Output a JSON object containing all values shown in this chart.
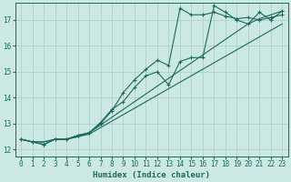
{
  "xlabel": "Humidex (Indice chaleur)",
  "bg_color": "#cce8e4",
  "line_color": "#1a6b5a",
  "grid_color": "#aaccc8",
  "xlim": [
    -0.5,
    23.5
  ],
  "ylim": [
    11.75,
    17.65
  ],
  "xticks": [
    0,
    1,
    2,
    3,
    4,
    5,
    6,
    7,
    8,
    9,
    10,
    11,
    12,
    13,
    14,
    15,
    16,
    17,
    18,
    19,
    20,
    21,
    22,
    23
  ],
  "yticks": [
    12,
    13,
    14,
    15,
    16,
    17
  ],
  "line_straight1": {
    "x": [
      0,
      1,
      2,
      3,
      4,
      5,
      6,
      7,
      8,
      9,
      10,
      11,
      12,
      13,
      14,
      15,
      16,
      17,
      18,
      19,
      20,
      21,
      22,
      23
    ],
    "y": [
      12.4,
      12.3,
      12.3,
      12.4,
      12.4,
      12.5,
      12.6,
      12.85,
      13.1,
      13.35,
      13.6,
      13.85,
      14.1,
      14.35,
      14.6,
      14.85,
      15.1,
      15.35,
      15.6,
      15.85,
      16.1,
      16.35,
      16.6,
      16.85
    ]
  },
  "line_straight2": {
    "x": [
      0,
      1,
      2,
      3,
      4,
      5,
      6,
      7,
      8,
      9,
      10,
      11,
      12,
      13,
      14,
      15,
      16,
      17,
      18,
      19,
      20,
      21,
      22,
      23
    ],
    "y": [
      12.4,
      12.3,
      12.3,
      12.4,
      12.4,
      12.5,
      12.65,
      12.95,
      13.25,
      13.55,
      13.85,
      14.15,
      14.45,
      14.75,
      15.05,
      15.35,
      15.65,
      15.95,
      16.25,
      16.55,
      16.85,
      17.05,
      17.2,
      17.35
    ]
  },
  "line_wiggly1": {
    "x": [
      0,
      1,
      2,
      3,
      4,
      5,
      6,
      7,
      8,
      9,
      10,
      11,
      12,
      13,
      14,
      15,
      16,
      17,
      18,
      19,
      20,
      21,
      22,
      23
    ],
    "y": [
      12.4,
      12.3,
      12.2,
      12.4,
      12.4,
      12.55,
      12.65,
      13.0,
      13.5,
      14.2,
      14.7,
      15.1,
      15.45,
      15.25,
      17.45,
      17.2,
      17.2,
      17.3,
      17.15,
      17.05,
      17.1,
      17.0,
      17.1,
      17.2
    ]
  },
  "line_wiggly2": {
    "x": [
      0,
      1,
      2,
      3,
      4,
      5,
      6,
      7,
      8,
      9,
      10,
      11,
      12,
      13,
      14,
      15,
      16,
      17,
      18,
      19,
      20,
      21,
      22,
      23
    ],
    "y": [
      12.4,
      12.3,
      12.2,
      12.4,
      12.4,
      12.55,
      12.65,
      13.05,
      13.55,
      13.85,
      14.4,
      14.85,
      15.0,
      14.5,
      15.4,
      15.55,
      15.55,
      17.55,
      17.3,
      17.0,
      16.85,
      17.3,
      17.0,
      17.35
    ]
  }
}
